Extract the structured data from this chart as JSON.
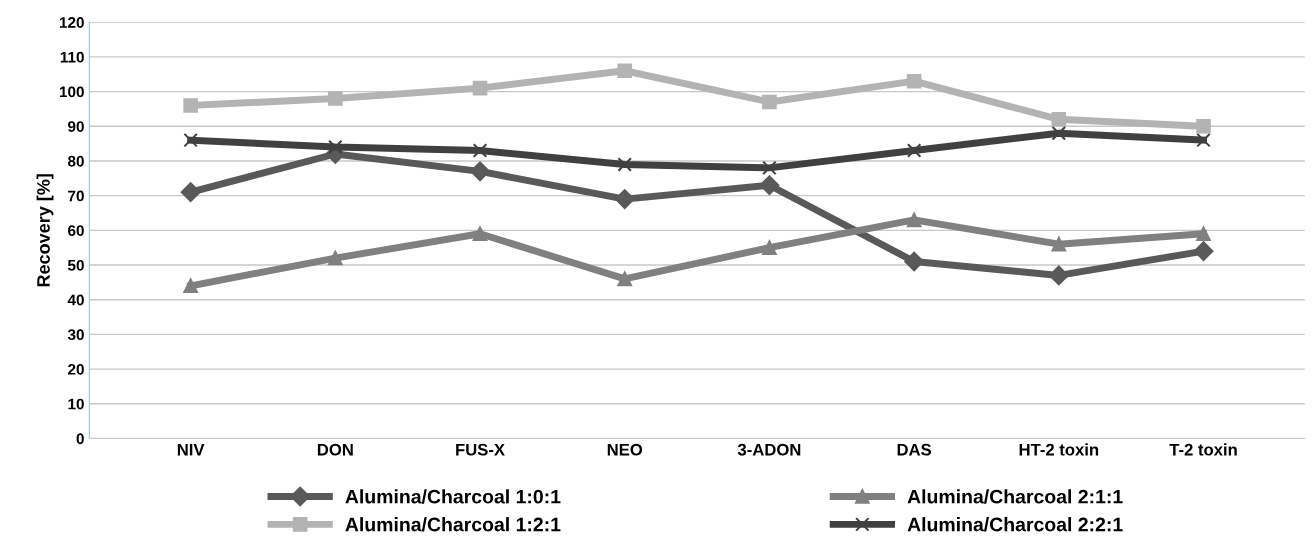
{
  "chart_data": {
    "type": "line",
    "ylabel": "Recovery [%]",
    "categories": [
      "NIV",
      "DON",
      "FUS-X",
      "NEO",
      "3-ADON",
      "DAS",
      "HT-2 toxin",
      "T-2 toxin"
    ],
    "series": [
      {
        "name": "Alumina/Charcoal 1:0:1",
        "color": "#595959",
        "marker": "diamond",
        "values": [
          71,
          82,
          77,
          69,
          73,
          51,
          47,
          54
        ]
      },
      {
        "name": "Alumina/Charcoal 1:2:1",
        "color": "#b3b3b3",
        "marker": "square",
        "values": [
          96,
          98,
          101,
          106,
          97,
          103,
          92,
          90
        ]
      },
      {
        "name": "Alumina/Charcoal 2:1:1",
        "color": "#808080",
        "marker": "triangle",
        "values": [
          44,
          52,
          59,
          46,
          55,
          63,
          56,
          59
        ]
      },
      {
        "name": "Alumina/Charcoal 2:2:1",
        "color": "#404040",
        "marker": "cross",
        "values": [
          86,
          84,
          83,
          79,
          78,
          83,
          88,
          86
        ]
      }
    ],
    "ylim": [
      0,
      120
    ],
    "yticks": [
      0,
      10,
      20,
      30,
      40,
      50,
      60,
      70,
      80,
      90,
      100,
      110,
      120
    ],
    "grid": "y",
    "legend": "bottom"
  }
}
